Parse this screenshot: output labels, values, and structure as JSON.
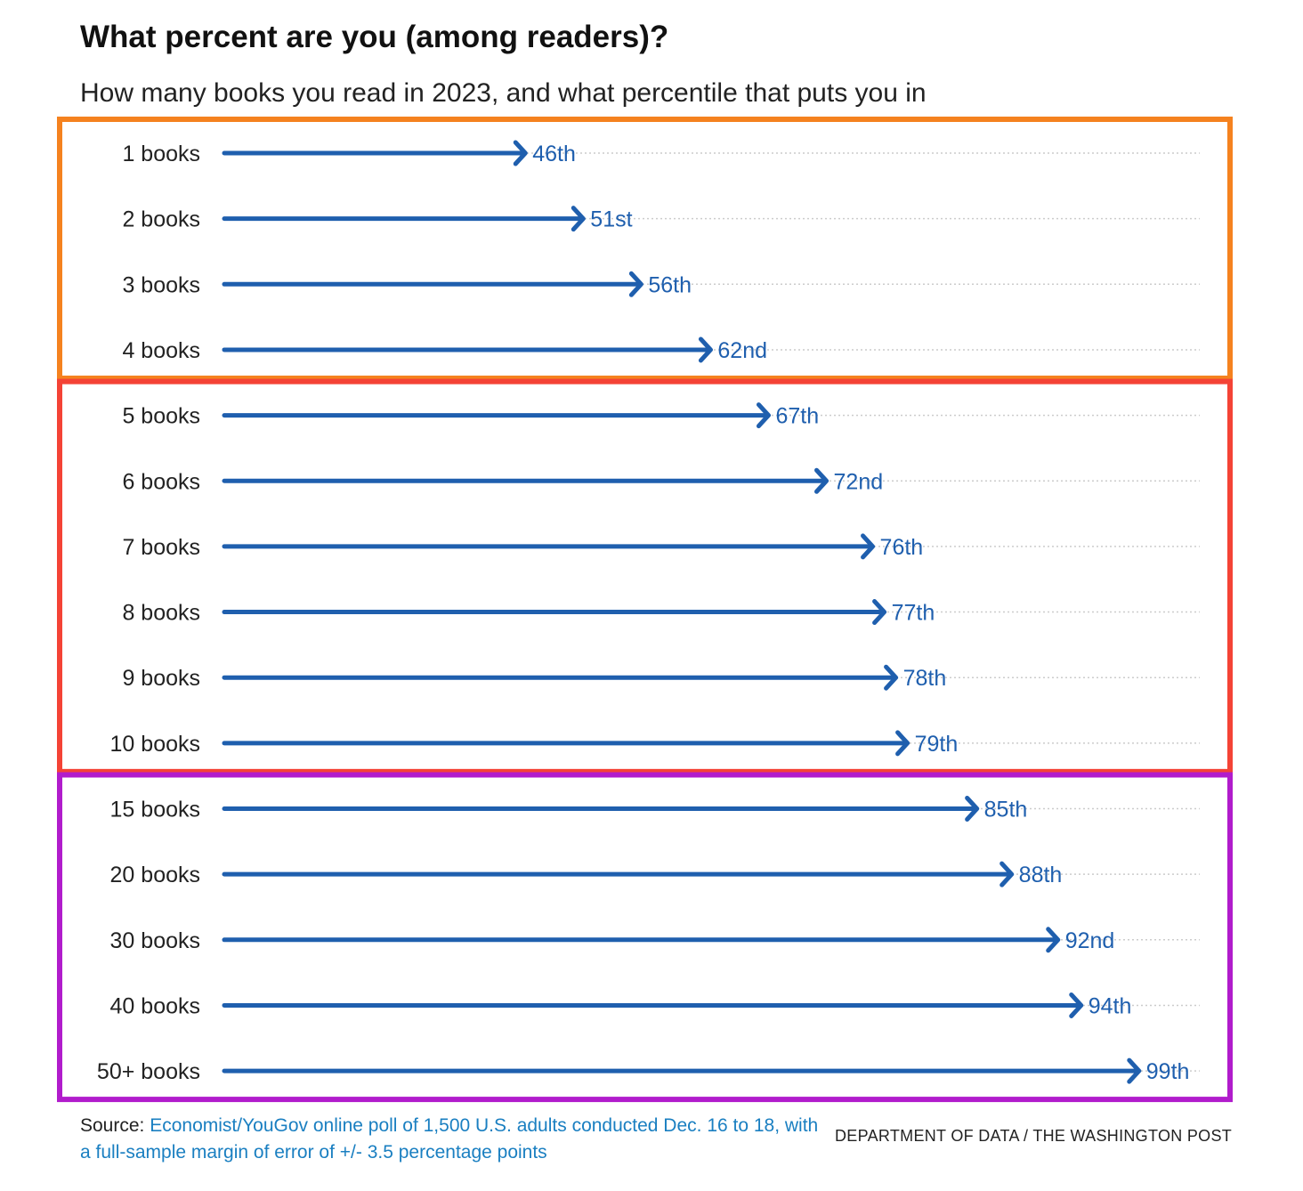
{
  "title": "What percent are you (among readers)?",
  "subtitle": "How many books you read in 2023, and what percentile that puts you in",
  "source": {
    "label": "Source:",
    "text": "Economist/YouGov online poll of 1,500 U.S. adults conducted Dec. 16 to 18, with a full-sample margin of error of +/- 3.5 percentage points"
  },
  "credit": "DEPARTMENT OF DATA / THE WASHINGTON POST",
  "colors": {
    "arrow": "#1f5fae",
    "label": "#1f5fae",
    "group_orange": "#f5821f",
    "group_red": "#f44336",
    "group_purple": "#b11ccc",
    "gridline": "#cccccc",
    "source_link": "#1a7fc1"
  },
  "chart_data": {
    "type": "bar",
    "style": "arrow",
    "grid": "horizontal dotted",
    "categories": [
      "1 books",
      "2 books",
      "3 books",
      "4 books",
      "5 books",
      "6 books",
      "7 books",
      "8 books",
      "9 books",
      "10 books",
      "15 books",
      "20 books",
      "30 books",
      "40 books",
      "50+ books"
    ],
    "values": [
      46,
      51,
      56,
      62,
      67,
      72,
      76,
      77,
      78,
      79,
      85,
      88,
      92,
      94,
      99
    ],
    "value_labels": [
      "46th",
      "51st",
      "56th",
      "62nd",
      "67th",
      "72nd",
      "76th",
      "77th",
      "78th",
      "79th",
      "85th",
      "88th",
      "92nd",
      "94th",
      "99th"
    ],
    "xlim": [
      0,
      100
    ],
    "groups": [
      {
        "color": "orange",
        "categories": [
          "1 books",
          "2 books",
          "3 books",
          "4 books"
        ]
      },
      {
        "color": "red",
        "categories": [
          "5 books",
          "6 books",
          "7 books",
          "8 books",
          "9 books",
          "10 books"
        ]
      },
      {
        "color": "purple",
        "categories": [
          "15 books",
          "20 books",
          "30 books",
          "40 books",
          "50+ books"
        ]
      }
    ]
  }
}
